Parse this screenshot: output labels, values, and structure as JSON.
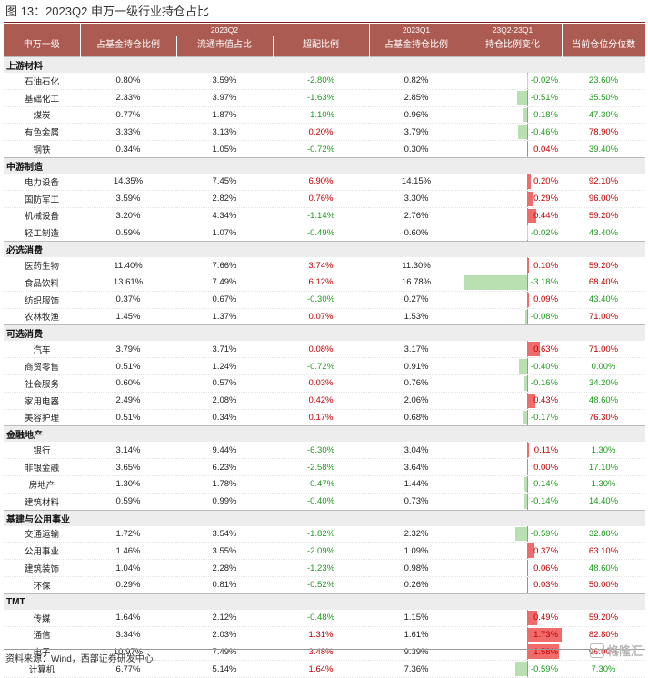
{
  "figure": {
    "title": "图 13：2023Q2 申万一级行业持仓占比",
    "source": "资料来源：Wind，西部证券研发中心",
    "watermark": "格隆汇"
  },
  "table": {
    "header_top": {
      "industry": "",
      "q2": "2023Q2",
      "q1": "2023Q1",
      "change": "23Q2-23Q1"
    },
    "columns": [
      "申万一级",
      "占基金持仓比例",
      "流通市值占比",
      "超配比例",
      "占基金持仓比例",
      "持仓比例变化",
      "当前仓位分位数"
    ],
    "colors": {
      "header_bg": "#ab5b51",
      "positive": "#c00000",
      "negative": "#1e9a1e",
      "bar_up": "#f26b6b",
      "bar_down": "#b8e0b0"
    },
    "groups": [
      {
        "name": "上游材料",
        "rows": [
          {
            "industry": "石油石化",
            "fund_q2": "0.80%",
            "mcap_q2": "3.59%",
            "overweight": "-2.80%",
            "fund_q1": "0.82%",
            "change": "-0.02%",
            "change_value": -0.02,
            "percentile": "23.60%",
            "percentile_value": 23.6
          },
          {
            "industry": "基础化工",
            "fund_q2": "2.33%",
            "mcap_q2": "3.97%",
            "overweight": "-1.63%",
            "fund_q1": "2.85%",
            "change": "-0.51%",
            "change_value": -0.51,
            "percentile": "35.50%",
            "percentile_value": 35.5
          },
          {
            "industry": "煤炭",
            "fund_q2": "0.77%",
            "mcap_q2": "1.87%",
            "overweight": "-1.10%",
            "fund_q1": "0.96%",
            "change": "-0.18%",
            "change_value": -0.18,
            "percentile": "47.30%",
            "percentile_value": 47.3
          },
          {
            "industry": "有色金属",
            "fund_q2": "3.33%",
            "mcap_q2": "3.13%",
            "overweight": "0.20%",
            "fund_q1": "3.79%",
            "change": "-0.46%",
            "change_value": -0.46,
            "percentile": "78.90%",
            "percentile_value": 78.9
          },
          {
            "industry": "钢铁",
            "fund_q2": "0.34%",
            "mcap_q2": "1.05%",
            "overweight": "-0.72%",
            "fund_q1": "0.30%",
            "change": "0.04%",
            "change_value": 0.04,
            "percentile": "39.40%",
            "percentile_value": 39.4
          }
        ]
      },
      {
        "name": "中游制造",
        "rows": [
          {
            "industry": "电力设备",
            "fund_q2": "14.35%",
            "mcap_q2": "7.45%",
            "overweight": "6.90%",
            "fund_q1": "14.15%",
            "change": "0.20%",
            "change_value": 0.2,
            "percentile": "92.10%",
            "percentile_value": 92.1
          },
          {
            "industry": "国防军工",
            "fund_q2": "3.59%",
            "mcap_q2": "2.82%",
            "overweight": "0.76%",
            "fund_q1": "3.30%",
            "change": "0.29%",
            "change_value": 0.29,
            "percentile": "96.00%",
            "percentile_value": 96.0
          },
          {
            "industry": "机械设备",
            "fund_q2": "3.20%",
            "mcap_q2": "4.34%",
            "overweight": "-1.14%",
            "fund_q1": "2.76%",
            "change": "0.44%",
            "change_value": 0.44,
            "percentile": "59.20%",
            "percentile_value": 59.2
          },
          {
            "industry": "轻工制造",
            "fund_q2": "0.59%",
            "mcap_q2": "1.07%",
            "overweight": "-0.49%",
            "fund_q1": "0.60%",
            "change": "-0.02%",
            "change_value": -0.02,
            "percentile": "43.40%",
            "percentile_value": 43.4
          }
        ]
      },
      {
        "name": "必选消费",
        "rows": [
          {
            "industry": "医药生物",
            "fund_q2": "11.40%",
            "mcap_q2": "7.66%",
            "overweight": "3.74%",
            "fund_q1": "11.30%",
            "change": "0.10%",
            "change_value": 0.1,
            "percentile": "59.20%",
            "percentile_value": 59.2
          },
          {
            "industry": "食品饮料",
            "fund_q2": "13.61%",
            "mcap_q2": "7.49%",
            "overweight": "6.12%",
            "fund_q1": "16.78%",
            "change": "-3.18%",
            "change_value": -3.18,
            "percentile": "68.40%",
            "percentile_value": 68.4
          },
          {
            "industry": "纺织服饰",
            "fund_q2": "0.37%",
            "mcap_q2": "0.67%",
            "overweight": "-0.30%",
            "fund_q1": "0.27%",
            "change": "0.09%",
            "change_value": 0.09,
            "percentile": "43.40%",
            "percentile_value": 43.4
          },
          {
            "industry": "农林牧渔",
            "fund_q2": "1.45%",
            "mcap_q2": "1.37%",
            "overweight": "0.07%",
            "fund_q1": "1.53%",
            "change": "-0.08%",
            "change_value": -0.08,
            "percentile": "71.00%",
            "percentile_value": 71.0
          }
        ]
      },
      {
        "name": "可选消费",
        "rows": [
          {
            "industry": "汽车",
            "fund_q2": "3.79%",
            "mcap_q2": "3.71%",
            "overweight": "0.08%",
            "fund_q1": "3.17%",
            "change": "0.63%",
            "change_value": 0.63,
            "percentile": "71.00%",
            "percentile_value": 71.0
          },
          {
            "industry": "商贸零售",
            "fund_q2": "0.51%",
            "mcap_q2": "1.24%",
            "overweight": "-0.72%",
            "fund_q1": "0.91%",
            "change": "-0.40%",
            "change_value": -0.4,
            "percentile": "0.00%",
            "percentile_value": 0.0
          },
          {
            "industry": "社会服务",
            "fund_q2": "0.60%",
            "mcap_q2": "0.57%",
            "overweight": "0.03%",
            "fund_q1": "0.76%",
            "change": "-0.16%",
            "change_value": -0.16,
            "percentile": "34.20%",
            "percentile_value": 34.2
          },
          {
            "industry": "家用电器",
            "fund_q2": "2.49%",
            "mcap_q2": "2.08%",
            "overweight": "0.42%",
            "fund_q1": "2.06%",
            "change": "0.43%",
            "change_value": 0.43,
            "percentile": "48.60%",
            "percentile_value": 48.6
          },
          {
            "industry": "美容护理",
            "fund_q2": "0.51%",
            "mcap_q2": "0.34%",
            "overweight": "0.17%",
            "fund_q1": "0.68%",
            "change": "-0.17%",
            "change_value": -0.17,
            "percentile": "76.30%",
            "percentile_value": 76.3
          }
        ]
      },
      {
        "name": "金融地产",
        "rows": [
          {
            "industry": "银行",
            "fund_q2": "3.14%",
            "mcap_q2": "9.44%",
            "overweight": "-6.30%",
            "fund_q1": "3.04%",
            "change": "0.11%",
            "change_value": 0.11,
            "percentile": "1.30%",
            "percentile_value": 1.3
          },
          {
            "industry": "非银金融",
            "fund_q2": "3.65%",
            "mcap_q2": "6.23%",
            "overweight": "-2.58%",
            "fund_q1": "3.64%",
            "change": "0.00%",
            "change_value": 0.0,
            "percentile": "17.10%",
            "percentile_value": 17.1
          },
          {
            "industry": "房地产",
            "fund_q2": "1.30%",
            "mcap_q2": "1.78%",
            "overweight": "-0.47%",
            "fund_q1": "1.44%",
            "change": "-0.14%",
            "change_value": -0.14,
            "percentile": "1.30%",
            "percentile_value": 1.3
          },
          {
            "industry": "建筑材料",
            "fund_q2": "0.59%",
            "mcap_q2": "0.99%",
            "overweight": "-0.40%",
            "fund_q1": "0.73%",
            "change": "-0.14%",
            "change_value": -0.14,
            "percentile": "14.40%",
            "percentile_value": 14.4
          }
        ]
      },
      {
        "name": "基建与公用事业",
        "rows": [
          {
            "industry": "交通运输",
            "fund_q2": "1.72%",
            "mcap_q2": "3.54%",
            "overweight": "-1.82%",
            "fund_q1": "2.32%",
            "change": "-0.59%",
            "change_value": -0.59,
            "percentile": "32.80%",
            "percentile_value": 32.8
          },
          {
            "industry": "公用事业",
            "fund_q2": "1.46%",
            "mcap_q2": "3.55%",
            "overweight": "-2.09%",
            "fund_q1": "1.09%",
            "change": "0.37%",
            "change_value": 0.37,
            "percentile": "63.10%",
            "percentile_value": 63.1
          },
          {
            "industry": "建筑装饰",
            "fund_q2": "1.04%",
            "mcap_q2": "2.28%",
            "overweight": "-1.23%",
            "fund_q1": "0.98%",
            "change": "0.06%",
            "change_value": 0.06,
            "percentile": "48.60%",
            "percentile_value": 48.6
          },
          {
            "industry": "环保",
            "fund_q2": "0.29%",
            "mcap_q2": "0.81%",
            "overweight": "-0.52%",
            "fund_q1": "0.26%",
            "change": "0.03%",
            "change_value": 0.03,
            "percentile": "50.00%",
            "percentile_value": 50.0
          }
        ]
      },
      {
        "name": "TMT",
        "rows": [
          {
            "industry": "传媒",
            "fund_q2": "1.64%",
            "mcap_q2": "2.12%",
            "overweight": "-0.48%",
            "fund_q1": "1.15%",
            "change": "0.49%",
            "change_value": 0.49,
            "percentile": "59.20%",
            "percentile_value": 59.2
          },
          {
            "industry": "通信",
            "fund_q2": "3.34%",
            "mcap_q2": "2.03%",
            "overweight": "1.31%",
            "fund_q1": "1.61%",
            "change": "1.73%",
            "change_value": 1.73,
            "percentile": "82.80%",
            "percentile_value": 82.8
          },
          {
            "industry": "电子",
            "fund_q2": "10.97%",
            "mcap_q2": "7.49%",
            "overweight": "3.48%",
            "fund_q1": "9.39%",
            "change": "1.58%",
            "change_value": 1.58,
            "percentile": "96.00%",
            "percentile_value": 96.0
          },
          {
            "industry": "计算机",
            "fund_q2": "6.77%",
            "mcap_q2": "5.14%",
            "overweight": "1.64%",
            "fund_q1": "7.36%",
            "change": "-0.59%",
            "change_value": -0.59,
            "percentile": "7.30%",
            "percentile_value": 7.3
          }
        ]
      }
    ]
  }
}
